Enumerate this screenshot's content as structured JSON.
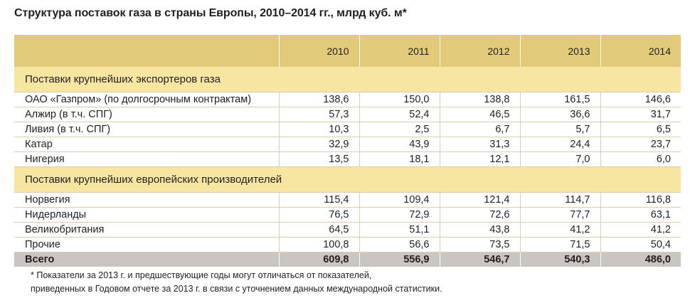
{
  "title": "Структура поставок газа в страны Европы, 2010–2014 гг., млрд куб. м*",
  "columns": [
    "2010",
    "2011",
    "2012",
    "2013",
    "2014"
  ],
  "sections": [
    {
      "heading": "Поставки крупнейших экспортеров газа",
      "rows": [
        {
          "label": "ОАО «Газпром» (по долгосрочным контрактам)",
          "values": [
            "138,6",
            "150,0",
            "138,8",
            "161,5",
            "146,6"
          ]
        },
        {
          "label": "Алжир (в т.ч. СПГ)",
          "values": [
            "57,3",
            "52,4",
            "46,5",
            "36,6",
            "31,7"
          ]
        },
        {
          "label": "Ливия (в т.ч. СПГ)",
          "values": [
            "10,3",
            "2,5",
            "6,7",
            "5,7",
            "6,5"
          ]
        },
        {
          "label": "Катар",
          "values": [
            "32,9",
            "43,9",
            "31,3",
            "24,4",
            "23,7"
          ]
        },
        {
          "label": "Нигерия",
          "values": [
            "13,5",
            "18,1",
            "12,1",
            "7,0",
            "6,0"
          ]
        }
      ]
    },
    {
      "heading": "Поставки крупнейших европейских производителей",
      "rows": [
        {
          "label": "Норвегия",
          "values": [
            "115,4",
            "109,4",
            "121,4",
            "114,7",
            "116,8"
          ]
        },
        {
          "label": "Нидерланды",
          "values": [
            "76,5",
            "72,9",
            "72,6",
            "77,7",
            "63,1"
          ]
        },
        {
          "label": "Великобритания",
          "values": [
            "64,5",
            "51,1",
            "43,8",
            "41,2",
            "41,2"
          ]
        },
        {
          "label": "Прочие",
          "values": [
            "100,8",
            "56,6",
            "73,5",
            "71,5",
            "50,4"
          ]
        }
      ]
    }
  ],
  "total": {
    "label": "Всего",
    "values": [
      "609,8",
      "556,9",
      "546,7",
      "540,3",
      "486,0"
    ]
  },
  "footnote": {
    "line1": "* Показатели за 2013 г. и предшествующие годы могут отличаться от показателей,",
    "line2": "приведенных в Годовом отчете за 2013 г. в связи с уточнением данных международной статистики."
  },
  "colors": {
    "header_bg": "#e1ca7a",
    "section_bg": "#f6e6a2",
    "total_bg": "#c9c5c1",
    "grid": "#d9ceb0"
  }
}
